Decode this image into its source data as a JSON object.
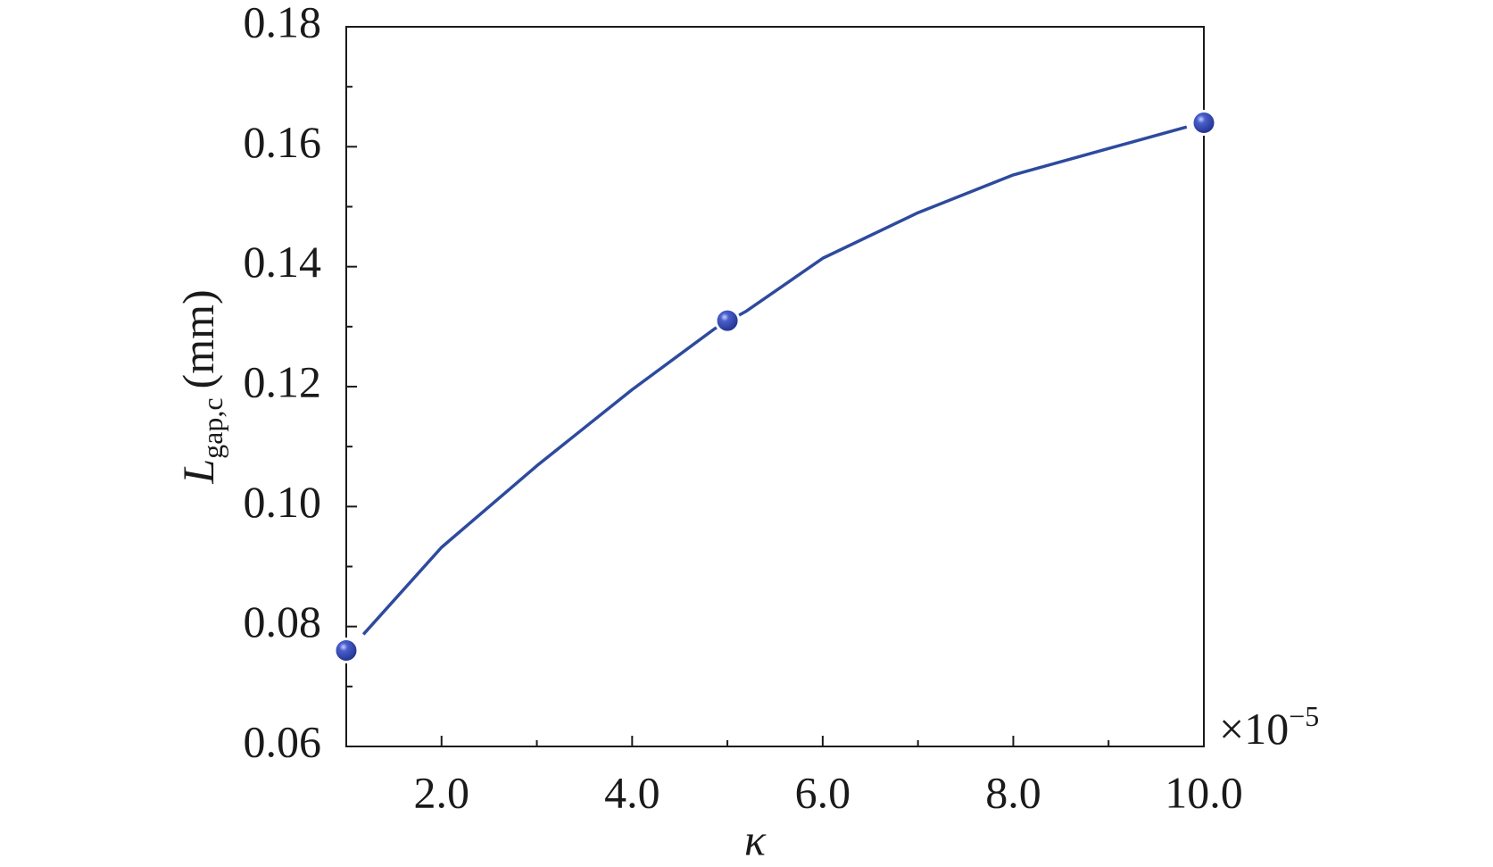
{
  "chart_data": {
    "type": "scatter",
    "xlabel": "κ",
    "ylabel": {
      "symbol": "L",
      "subscript": "gap,c",
      "unit": "(mm)"
    },
    "x_scale": {
      "base": "×10",
      "exponent": "−5"
    },
    "xlim": [
      1,
      10
    ],
    "xticks": [
      {
        "value": 2,
        "label": "2.0"
      },
      {
        "value": 4,
        "label": "4.0"
      },
      {
        "value": 6,
        "label": "6.0"
      },
      {
        "value": 8,
        "label": "8.0"
      },
      {
        "value": 10,
        "label": "10.0"
      }
    ],
    "ylim": [
      0.06,
      0.18
    ],
    "yticks": [
      0.06,
      0.08,
      {
        "value": 0.1,
        "label": "0.10"
      },
      0.12,
      0.14,
      0.16,
      0.18
    ],
    "series": [
      {
        "type": "scatter",
        "color": "#2f45aa",
        "x": [
          1,
          5,
          10
        ],
        "values": [
          0.076,
          0.131,
          0.164
        ]
      },
      {
        "type": "line",
        "color": "#2e4a9e",
        "x": [
          1.18,
          2,
          3,
          4,
          4.87,
          5.2,
          6,
          7,
          8,
          9,
          9.82
        ],
        "values": [
          0.0787,
          0.0932,
          0.1068,
          0.1195,
          0.1297,
          0.1326,
          0.1414,
          0.149,
          0.1553,
          0.1597,
          0.1633
        ]
      }
    ]
  }
}
